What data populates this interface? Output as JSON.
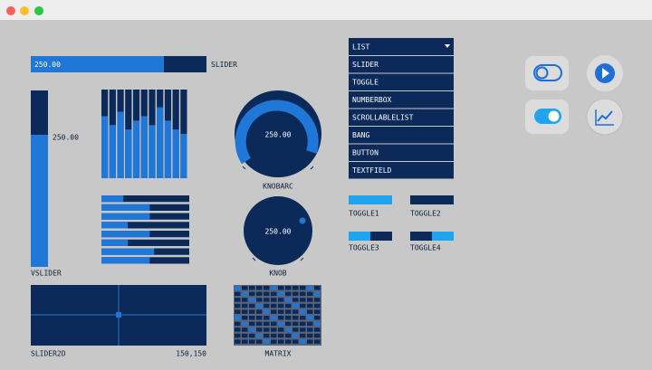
{
  "slider": {
    "value_label": "250.00",
    "label": "SLIDER"
  },
  "vslider": {
    "value_label": "250.00",
    "label": "VSLIDER"
  },
  "vbars": [
    0.7,
    0.6,
    0.75,
    0.55,
    0.65,
    0.7,
    0.6,
    0.8,
    0.65,
    0.55,
    0.5
  ],
  "hbars": [
    0.25,
    0.55,
    0.55,
    0.3,
    0.55,
    0.3,
    0.6,
    0.55
  ],
  "knobarc": {
    "value_label": "250.00",
    "label": "KNOBARC"
  },
  "knob": {
    "value_label": "250.00",
    "label": "KNOB"
  },
  "slider2d": {
    "label": "SLIDER2D",
    "value_label": "150,150"
  },
  "matrix": {
    "label": "MATRIX"
  },
  "list": {
    "header": "LIST",
    "items": [
      "SLIDER",
      "TOGGLE",
      "NUMBERBOX",
      "SCROLLABLELIST",
      "BANG",
      "BUTTON",
      "TEXTFIELD"
    ]
  },
  "toggles": [
    "TOGGLE1",
    "TOGGLE2",
    "TOGGLE3",
    "TOGGLE4"
  ]
}
